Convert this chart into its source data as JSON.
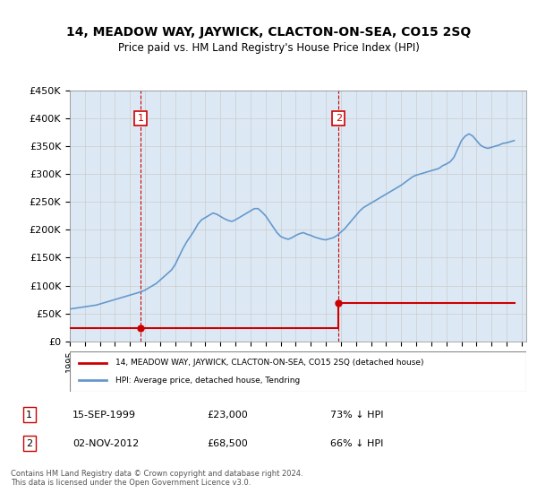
{
  "title": "14, MEADOW WAY, JAYWICK, CLACTON-ON-SEA, CO15 2SQ",
  "subtitle": "Price paid vs. HM Land Registry's House Price Index (HPI)",
  "legend_label_red": "14, MEADOW WAY, JAYWICK, CLACTON-ON-SEA, CO15 2SQ (detached house)",
  "legend_label_blue": "HPI: Average price, detached house, Tendring",
  "annotation1_label": "1",
  "annotation1_date": "15-SEP-1999",
  "annotation1_price": "£23,000",
  "annotation1_hpi": "73% ↓ HPI",
  "annotation2_label": "2",
  "annotation2_date": "02-NOV-2012",
  "annotation2_price": "£68,500",
  "annotation2_hpi": "66% ↓ HPI",
  "footer": "Contains HM Land Registry data © Crown copyright and database right 2024.\nThis data is licensed under the Open Government Licence v3.0.",
  "red_color": "#cc0000",
  "blue_color": "#6699cc",
  "background_color": "#dce9f5",
  "plot_bg": "#ffffff",
  "grid_color": "#cccccc",
  "annotation_box_color": "#cc0000",
  "ylim": [
    0,
    450000
  ],
  "yticks": [
    0,
    50000,
    100000,
    150000,
    200000,
    250000,
    300000,
    350000,
    400000,
    450000
  ],
  "ytick_labels": [
    "£0",
    "£50K",
    "£100K",
    "£150K",
    "£200K",
    "£250K",
    "£300K",
    "£350K",
    "£400K",
    "£450K"
  ],
  "sale1_date_num": 1999.71,
  "sale1_price": 23000,
  "sale2_date_num": 2012.84,
  "sale2_price": 68500,
  "hpi_dates": [
    1995.0,
    1995.25,
    1995.5,
    1995.75,
    1996.0,
    1996.25,
    1996.5,
    1996.75,
    1997.0,
    1997.25,
    1997.5,
    1997.75,
    1998.0,
    1998.25,
    1998.5,
    1998.75,
    1999.0,
    1999.25,
    1999.5,
    1999.75,
    2000.0,
    2000.25,
    2000.5,
    2000.75,
    2001.0,
    2001.25,
    2001.5,
    2001.75,
    2002.0,
    2002.25,
    2002.5,
    2002.75,
    2003.0,
    2003.25,
    2003.5,
    2003.75,
    2004.0,
    2004.25,
    2004.5,
    2004.75,
    2005.0,
    2005.25,
    2005.5,
    2005.75,
    2006.0,
    2006.25,
    2006.5,
    2006.75,
    2007.0,
    2007.25,
    2007.5,
    2007.75,
    2008.0,
    2008.25,
    2008.5,
    2008.75,
    2009.0,
    2009.25,
    2009.5,
    2009.75,
    2010.0,
    2010.25,
    2010.5,
    2010.75,
    2011.0,
    2011.25,
    2011.5,
    2011.75,
    2012.0,
    2012.25,
    2012.5,
    2012.75,
    2013.0,
    2013.25,
    2013.5,
    2013.75,
    2014.0,
    2014.25,
    2014.5,
    2014.75,
    2015.0,
    2015.25,
    2015.5,
    2015.75,
    2016.0,
    2016.25,
    2016.5,
    2016.75,
    2017.0,
    2017.25,
    2017.5,
    2017.75,
    2018.0,
    2018.25,
    2018.5,
    2018.75,
    2019.0,
    2019.25,
    2019.5,
    2019.75,
    2020.0,
    2020.25,
    2020.5,
    2020.75,
    2021.0,
    2021.25,
    2021.5,
    2021.75,
    2022.0,
    2022.25,
    2022.5,
    2022.75,
    2023.0,
    2023.25,
    2023.5,
    2023.75,
    2024.0,
    2024.25,
    2024.5
  ],
  "hpi_values": [
    58000,
    59000,
    60000,
    61000,
    62000,
    63000,
    64000,
    65000,
    67000,
    69000,
    71000,
    73000,
    75000,
    77000,
    79000,
    81000,
    83000,
    85000,
    87000,
    89000,
    92000,
    96000,
    100000,
    104000,
    110000,
    116000,
    122000,
    128000,
    138000,
    152000,
    166000,
    178000,
    188000,
    198000,
    210000,
    218000,
    222000,
    226000,
    230000,
    228000,
    224000,
    220000,
    217000,
    215000,
    218000,
    222000,
    226000,
    230000,
    234000,
    238000,
    238000,
    232000,
    225000,
    215000,
    205000,
    195000,
    188000,
    185000,
    183000,
    186000,
    190000,
    193000,
    195000,
    192000,
    190000,
    187000,
    185000,
    183000,
    182000,
    184000,
    186000,
    190000,
    196000,
    202000,
    210000,
    218000,
    226000,
    234000,
    240000,
    244000,
    248000,
    252000,
    256000,
    260000,
    264000,
    268000,
    272000,
    276000,
    280000,
    285000,
    290000,
    295000,
    298000,
    300000,
    302000,
    304000,
    306000,
    308000,
    310000,
    315000,
    318000,
    322000,
    330000,
    345000,
    360000,
    368000,
    372000,
    368000,
    360000,
    352000,
    348000,
    346000,
    348000,
    350000,
    352000,
    355000,
    356000,
    358000,
    360000
  ]
}
